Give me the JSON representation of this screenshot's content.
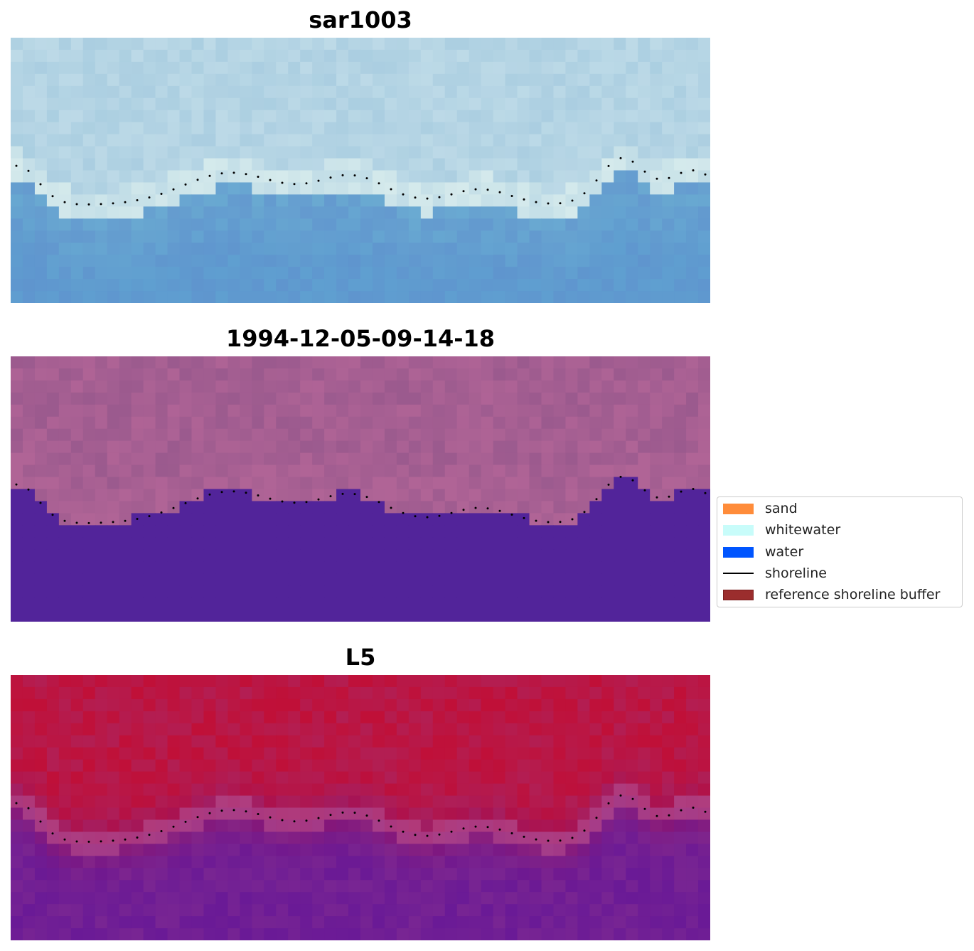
{
  "figure": {
    "panels": [
      {
        "title": "sar1003",
        "kind": "rgb"
      },
      {
        "title": "1994-12-05-09-14-18",
        "kind": "classification"
      },
      {
        "title": "L5",
        "kind": "probability"
      }
    ]
  },
  "legend": {
    "items": [
      {
        "label": "sand",
        "type": "patch",
        "color": "#ff8c3a",
        "edge": "#ff8c3a"
      },
      {
        "label": "whitewater",
        "type": "patch",
        "color": "#c8fcfa",
        "edge": "#c8fcfa"
      },
      {
        "label": "water",
        "type": "patch",
        "color": "#0055ff",
        "edge": "#0055ff"
      },
      {
        "label": "shoreline",
        "type": "line",
        "color": "#000000"
      },
      {
        "label": "reference shoreline buffer",
        "type": "patch",
        "color": "#9b2d2d",
        "edge": "#7a1e1e"
      }
    ]
  },
  "chart_data": {
    "type": "heatmap",
    "colors": {
      "water_class": "#52249a",
      "land_class": "#9b5a8e",
      "probability_high": "#c01038",
      "probability_low": "#6a1a96",
      "rgb_sky": "#a9cde0",
      "rgb_sea": "#5fa0d0"
    },
    "shoreline_style": "dotted",
    "axes_visible": false
  }
}
